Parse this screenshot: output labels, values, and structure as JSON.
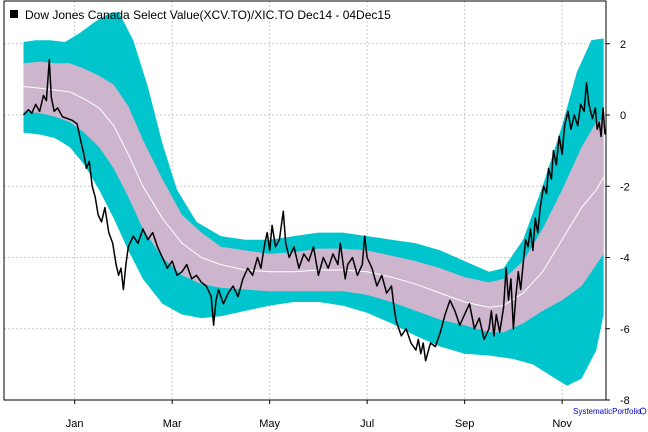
{
  "chart_data": {
    "type": "line",
    "title": "Dow Jones Canada Select Value(XCV.TO)/XIC.TO Dec14 - 04Dec15",
    "credit": "SystematicPortfolio",
    "x_tick_labels": [
      "Jan",
      "Mar",
      "May",
      "Jul",
      "Sep",
      "Nov"
    ],
    "x_tick_months": [
      1,
      3,
      5,
      7,
      9,
      11
    ],
    "x_range_months": [
      -0.45,
      11.9
    ],
    "y_ticks": [
      2,
      0,
      -2,
      -4,
      -6,
      -8
    ],
    "ylim": [
      -8,
      3.2
    ],
    "grid": true,
    "legend_position": "top-left",
    "colors": {
      "outer_band": "#00c5cd",
      "inner_band": "#cdb5cd",
      "mean_line": "#ffffff",
      "price_line": "#000000"
    },
    "outer_upper": [
      [
        -0.05,
        2.05
      ],
      [
        0.2,
        2.1
      ],
      [
        0.5,
        2.1
      ],
      [
        0.8,
        2.05
      ],
      [
        1.1,
        2.3
      ],
      [
        1.4,
        2.6
      ],
      [
        1.7,
        2.85
      ],
      [
        1.9,
        2.9
      ],
      [
        2.2,
        2.1
      ],
      [
        2.5,
        0.8
      ],
      [
        2.8,
        -0.8
      ],
      [
        3.1,
        -2.1
      ],
      [
        3.5,
        -3.0
      ],
      [
        4.0,
        -3.4
      ],
      [
        4.5,
        -3.5
      ],
      [
        5.0,
        -3.5
      ],
      [
        5.5,
        -3.4
      ],
      [
        6.0,
        -3.3
      ],
      [
        6.5,
        -3.3
      ],
      [
        7.0,
        -3.4
      ],
      [
        7.5,
        -3.5
      ],
      [
        8.0,
        -3.6
      ],
      [
        8.5,
        -3.8
      ],
      [
        9.0,
        -4.1
      ],
      [
        9.5,
        -4.4
      ],
      [
        9.8,
        -4.3
      ],
      [
        10.2,
        -3.5
      ],
      [
        10.6,
        -2.0
      ],
      [
        11.0,
        -0.3
      ],
      [
        11.3,
        1.2
      ],
      [
        11.6,
        2.1
      ],
      [
        11.85,
        2.15
      ]
    ],
    "inner_upper": [
      [
        -0.05,
        1.45
      ],
      [
        0.3,
        1.5
      ],
      [
        0.6,
        1.45
      ],
      [
        0.9,
        1.45
      ],
      [
        1.2,
        1.3
      ],
      [
        1.5,
        1.1
      ],
      [
        1.8,
        0.85
      ],
      [
        2.1,
        0.25
      ],
      [
        2.4,
        -0.7
      ],
      [
        2.8,
        -1.8
      ],
      [
        3.2,
        -2.8
      ],
      [
        3.6,
        -3.3
      ],
      [
        4.0,
        -3.7
      ],
      [
        4.5,
        -3.8
      ],
      [
        5.0,
        -3.9
      ],
      [
        5.5,
        -3.85
      ],
      [
        6.0,
        -3.75
      ],
      [
        6.5,
        -3.75
      ],
      [
        7.0,
        -3.8
      ],
      [
        7.5,
        -3.95
      ],
      [
        8.0,
        -4.1
      ],
      [
        8.5,
        -4.3
      ],
      [
        9.0,
        -4.55
      ],
      [
        9.5,
        -4.7
      ],
      [
        9.8,
        -4.6
      ],
      [
        10.2,
        -4.1
      ],
      [
        10.6,
        -3.2
      ],
      [
        11.0,
        -2.1
      ],
      [
        11.4,
        -0.9
      ],
      [
        11.7,
        -0.2
      ],
      [
        11.85,
        -0.1
      ]
    ],
    "mean_line": [
      [
        -0.05,
        0.8
      ],
      [
        0.3,
        0.75
      ],
      [
        0.6,
        0.7
      ],
      [
        0.9,
        0.65
      ],
      [
        1.2,
        0.45
      ],
      [
        1.5,
        0.2
      ],
      [
        1.8,
        -0.3
      ],
      [
        2.1,
        -1.1
      ],
      [
        2.4,
        -2.0
      ],
      [
        2.8,
        -2.9
      ],
      [
        3.2,
        -3.6
      ],
      [
        3.6,
        -4.0
      ],
      [
        4.0,
        -4.2
      ],
      [
        4.5,
        -4.35
      ],
      [
        5.0,
        -4.4
      ],
      [
        5.5,
        -4.4
      ],
      [
        6.0,
        -4.35
      ],
      [
        6.5,
        -4.35
      ],
      [
        7.0,
        -4.4
      ],
      [
        7.5,
        -4.55
      ],
      [
        8.0,
        -4.75
      ],
      [
        8.5,
        -5.0
      ],
      [
        9.0,
        -5.25
      ],
      [
        9.5,
        -5.4
      ],
      [
        9.8,
        -5.35
      ],
      [
        10.2,
        -5.0
      ],
      [
        10.6,
        -4.4
      ],
      [
        11.0,
        -3.5
      ],
      [
        11.4,
        -2.6
      ],
      [
        11.7,
        -2.1
      ],
      [
        11.85,
        -1.75
      ]
    ],
    "inner_lower": [
      [
        -0.05,
        0.1
      ],
      [
        0.3,
        0.05
      ],
      [
        0.6,
        -0.05
      ],
      [
        0.9,
        -0.2
      ],
      [
        1.2,
        -0.5
      ],
      [
        1.5,
        -0.9
      ],
      [
        1.8,
        -1.5
      ],
      [
        2.1,
        -2.3
      ],
      [
        2.4,
        -3.2
      ],
      [
        2.8,
        -4.0
      ],
      [
        3.2,
        -4.5
      ],
      [
        3.6,
        -4.75
      ],
      [
        4.0,
        -4.85
      ],
      [
        4.5,
        -4.9
      ],
      [
        5.0,
        -4.95
      ],
      [
        5.5,
        -4.95
      ],
      [
        6.0,
        -4.95
      ],
      [
        6.5,
        -4.95
      ],
      [
        7.0,
        -5.05
      ],
      [
        7.5,
        -5.25
      ],
      [
        8.0,
        -5.5
      ],
      [
        8.5,
        -5.75
      ],
      [
        9.0,
        -5.9
      ],
      [
        9.5,
        -6.1
      ],
      [
        9.8,
        -6.1
      ],
      [
        10.2,
        -5.85
      ],
      [
        10.6,
        -5.5
      ],
      [
        11.0,
        -5.2
      ],
      [
        11.4,
        -4.8
      ],
      [
        11.7,
        -4.2
      ],
      [
        11.85,
        -3.9
      ]
    ],
    "outer_lower": [
      [
        -0.05,
        -0.5
      ],
      [
        0.3,
        -0.55
      ],
      [
        0.6,
        -0.65
      ],
      [
        0.9,
        -0.9
      ],
      [
        1.2,
        -1.4
      ],
      [
        1.5,
        -2.1
      ],
      [
        1.8,
        -2.9
      ],
      [
        2.1,
        -3.8
      ],
      [
        2.4,
        -4.6
      ],
      [
        2.8,
        -5.3
      ],
      [
        3.2,
        -5.6
      ],
      [
        3.6,
        -5.7
      ],
      [
        4.0,
        -5.65
      ],
      [
        4.5,
        -5.5
      ],
      [
        5.0,
        -5.35
      ],
      [
        5.5,
        -5.25
      ],
      [
        6.0,
        -5.25
      ],
      [
        6.5,
        -5.35
      ],
      [
        7.0,
        -5.55
      ],
      [
        7.5,
        -5.85
      ],
      [
        8.0,
        -6.2
      ],
      [
        8.5,
        -6.5
      ],
      [
        9.0,
        -6.7
      ],
      [
        9.5,
        -6.75
      ],
      [
        10.0,
        -6.85
      ],
      [
        10.4,
        -7.0
      ],
      [
        10.8,
        -7.35
      ],
      [
        11.1,
        -7.6
      ],
      [
        11.4,
        -7.4
      ],
      [
        11.7,
        -6.6
      ],
      [
        11.85,
        -5.6
      ]
    ],
    "price": [
      [
        -0.05,
        0.0
      ],
      [
        0.05,
        0.15
      ],
      [
        0.12,
        0.05
      ],
      [
        0.2,
        0.3
      ],
      [
        0.28,
        0.1
      ],
      [
        0.36,
        0.55
      ],
      [
        0.42,
        0.4
      ],
      [
        0.48,
        1.55
      ],
      [
        0.52,
        0.5
      ],
      [
        0.58,
        0.1
      ],
      [
        0.65,
        0.2
      ],
      [
        0.75,
        -0.05
      ],
      [
        0.85,
        -0.1
      ],
      [
        0.95,
        -0.15
      ],
      [
        1.05,
        -0.25
      ],
      [
        1.12,
        -0.7
      ],
      [
        1.18,
        -1.05
      ],
      [
        1.24,
        -1.5
      ],
      [
        1.3,
        -1.3
      ],
      [
        1.36,
        -2.0
      ],
      [
        1.42,
        -2.3
      ],
      [
        1.48,
        -2.8
      ],
      [
        1.55,
        -3.0
      ],
      [
        1.62,
        -2.6
      ],
      [
        1.7,
        -3.3
      ],
      [
        1.78,
        -3.6
      ],
      [
        1.85,
        -4.2
      ],
      [
        1.9,
        -4.5
      ],
      [
        1.95,
        -4.3
      ],
      [
        2.0,
        -4.9
      ],
      [
        2.05,
        -4.2
      ],
      [
        2.1,
        -3.7
      ],
      [
        2.2,
        -3.4
      ],
      [
        2.3,
        -3.6
      ],
      [
        2.4,
        -3.2
      ],
      [
        2.5,
        -3.5
      ],
      [
        2.6,
        -3.3
      ],
      [
        2.7,
        -3.7
      ],
      [
        2.8,
        -4.0
      ],
      [
        2.9,
        -4.3
      ],
      [
        3.0,
        -4.1
      ],
      [
        3.1,
        -4.5
      ],
      [
        3.2,
        -4.4
      ],
      [
        3.3,
        -4.2
      ],
      [
        3.4,
        -4.6
      ],
      [
        3.5,
        -4.5
      ],
      [
        3.6,
        -4.7
      ],
      [
        3.7,
        -4.8
      ],
      [
        3.8,
        -5.1
      ],
      [
        3.85,
        -5.9
      ],
      [
        3.9,
        -5.2
      ],
      [
        3.95,
        -4.9
      ],
      [
        4.05,
        -5.3
      ],
      [
        4.15,
        -5.0
      ],
      [
        4.25,
        -4.8
      ],
      [
        4.35,
        -5.1
      ],
      [
        4.45,
        -4.6
      ],
      [
        4.55,
        -4.3
      ],
      [
        4.65,
        -4.5
      ],
      [
        4.75,
        -4.0
      ],
      [
        4.82,
        -4.3
      ],
      [
        4.9,
        -3.6
      ],
      [
        4.95,
        -3.3
      ],
      [
        5.0,
        -3.8
      ],
      [
        5.05,
        -3.1
      ],
      [
        5.12,
        -3.7
      ],
      [
        5.2,
        -3.5
      ],
      [
        5.28,
        -2.7
      ],
      [
        5.33,
        -3.6
      ],
      [
        5.4,
        -4.0
      ],
      [
        5.5,
        -3.7
      ],
      [
        5.6,
        -4.3
      ],
      [
        5.7,
        -3.9
      ],
      [
        5.8,
        -4.1
      ],
      [
        5.9,
        -3.7
      ],
      [
        6.0,
        -4.5
      ],
      [
        6.1,
        -4.0
      ],
      [
        6.2,
        -4.3
      ],
      [
        6.3,
        -3.9
      ],
      [
        6.4,
        -4.2
      ],
      [
        6.45,
        -3.6
      ],
      [
        6.5,
        -4.1
      ],
      [
        6.55,
        -4.6
      ],
      [
        6.6,
        -4.2
      ],
      [
        6.7,
        -4.0
      ],
      [
        6.8,
        -4.5
      ],
      [
        6.9,
        -4.2
      ],
      [
        6.95,
        -3.4
      ],
      [
        7.0,
        -4.0
      ],
      [
        7.1,
        -4.3
      ],
      [
        7.2,
        -4.8
      ],
      [
        7.3,
        -4.5
      ],
      [
        7.4,
        -5.0
      ],
      [
        7.5,
        -4.8
      ],
      [
        7.55,
        -5.4
      ],
      [
        7.6,
        -5.8
      ],
      [
        7.7,
        -6.2
      ],
      [
        7.8,
        -6.0
      ],
      [
        7.9,
        -6.4
      ],
      [
        8.0,
        -6.6
      ],
      [
        8.05,
        -6.3
      ],
      [
        8.1,
        -6.7
      ],
      [
        8.15,
        -6.4
      ],
      [
        8.2,
        -6.9
      ],
      [
        8.3,
        -6.4
      ],
      [
        8.4,
        -6.5
      ],
      [
        8.5,
        -6.1
      ],
      [
        8.6,
        -5.6
      ],
      [
        8.7,
        -5.2
      ],
      [
        8.8,
        -5.5
      ],
      [
        8.9,
        -5.9
      ],
      [
        9.0,
        -5.6
      ],
      [
        9.1,
        -5.3
      ],
      [
        9.2,
        -6.0
      ],
      [
        9.3,
        -5.7
      ],
      [
        9.4,
        -6.3
      ],
      [
        9.5,
        -6.0
      ],
      [
        9.55,
        -5.5
      ],
      [
        9.6,
        -6.2
      ],
      [
        9.65,
        -5.6
      ],
      [
        9.72,
        -6.1
      ],
      [
        9.8,
        -5.4
      ],
      [
        9.85,
        -4.3
      ],
      [
        9.9,
        -5.2
      ],
      [
        9.95,
        -4.6
      ],
      [
        10.0,
        -6.0
      ],
      [
        10.05,
        -5.1
      ],
      [
        10.1,
        -4.4
      ],
      [
        10.15,
        -4.9
      ],
      [
        10.2,
        -4.2
      ],
      [
        10.25,
        -3.5
      ],
      [
        10.3,
        -3.7
      ],
      [
        10.35,
        -3.2
      ],
      [
        10.4,
        -3.8
      ],
      [
        10.45,
        -2.9
      ],
      [
        10.5,
        -3.3
      ],
      [
        10.55,
        -2.6
      ],
      [
        10.62,
        -2.0
      ],
      [
        10.68,
        -2.2
      ],
      [
        10.72,
        -1.5
      ],
      [
        10.78,
        -1.8
      ],
      [
        10.82,
        -1.0
      ],
      [
        10.88,
        -1.4
      ],
      [
        10.94,
        -0.6
      ],
      [
        11.0,
        -1.1
      ],
      [
        11.05,
        -0.3
      ],
      [
        11.12,
        0.1
      ],
      [
        11.18,
        -0.4
      ],
      [
        11.25,
        0.0
      ],
      [
        11.32,
        -0.3
      ],
      [
        11.38,
        0.3
      ],
      [
        11.45,
        0.1
      ],
      [
        11.5,
        0.9
      ],
      [
        11.55,
        0.3
      ],
      [
        11.62,
        -0.1
      ],
      [
        11.68,
        0.2
      ],
      [
        11.72,
        -0.4
      ],
      [
        11.76,
        -0.2
      ],
      [
        11.8,
        -0.6
      ],
      [
        11.84,
        0.2
      ],
      [
        11.88,
        -0.55
      ]
    ]
  }
}
